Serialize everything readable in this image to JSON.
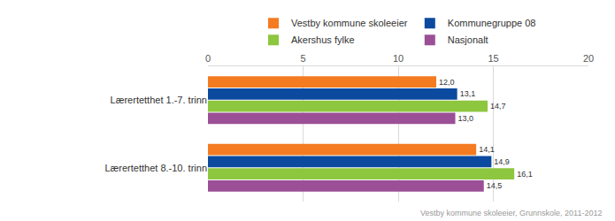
{
  "chart_data": {
    "type": "bar",
    "orientation": "horizontal",
    "categories": [
      "Lærertetthet 1.-7. trinn",
      "Lærertetthet 8.-10. trinn"
    ],
    "series": [
      {
        "name": "Vestby kommune skoleeier",
        "color": "#f47b20",
        "values": [
          12.0,
          14.1
        ],
        "value_labels": [
          "12,0",
          "14,1"
        ]
      },
      {
        "name": "Kommunegruppe 08",
        "color": "#0b4a9e",
        "values": [
          13.1,
          14.9
        ],
        "value_labels": [
          "13,1",
          "14,9"
        ]
      },
      {
        "name": "Akershus fylke",
        "color": "#8dc63f",
        "values": [
          14.7,
          16.1
        ],
        "value_labels": [
          "14,7",
          "16,1"
        ]
      },
      {
        "name": "Nasjonalt",
        "color": "#9b4f96",
        "values": [
          13.0,
          14.5
        ],
        "value_labels": [
          "13,0",
          "14,5"
        ]
      }
    ],
    "xlim": [
      0,
      20
    ],
    "xticks": [
      0,
      5,
      10,
      15,
      20
    ],
    "grid": true,
    "legend": "top",
    "data_labels": true,
    "annotation": "Vestby kommune skoleeier, Grunnskole, 2011-2012"
  }
}
